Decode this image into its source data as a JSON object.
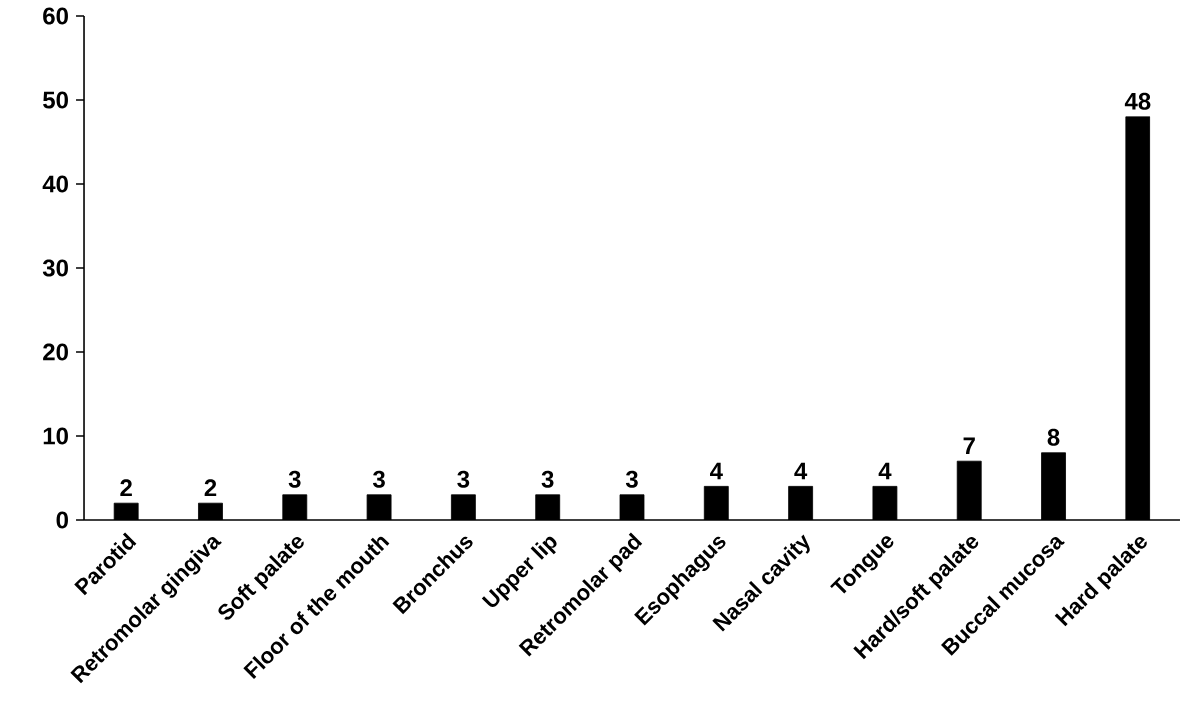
{
  "chart_data": {
    "type": "bar",
    "categories": [
      "Parotid",
      "Retromolar gingiva",
      "Soft palate",
      "Floor of the mouth",
      "Bronchus",
      "Upper lip",
      "Retromolar pad",
      "Esophagus",
      "Nasal cavity",
      "Tongue",
      "Hard/soft palate",
      "Buccal mucosa",
      "Hard palate"
    ],
    "values": [
      2,
      2,
      3,
      3,
      3,
      3,
      3,
      4,
      4,
      4,
      7,
      8,
      48
    ],
    "color": "#000000",
    "ylim": [
      0,
      60
    ],
    "yticks": [
      0,
      10,
      20,
      30,
      40,
      50,
      60
    ],
    "data_labels": true,
    "grid": false
  }
}
